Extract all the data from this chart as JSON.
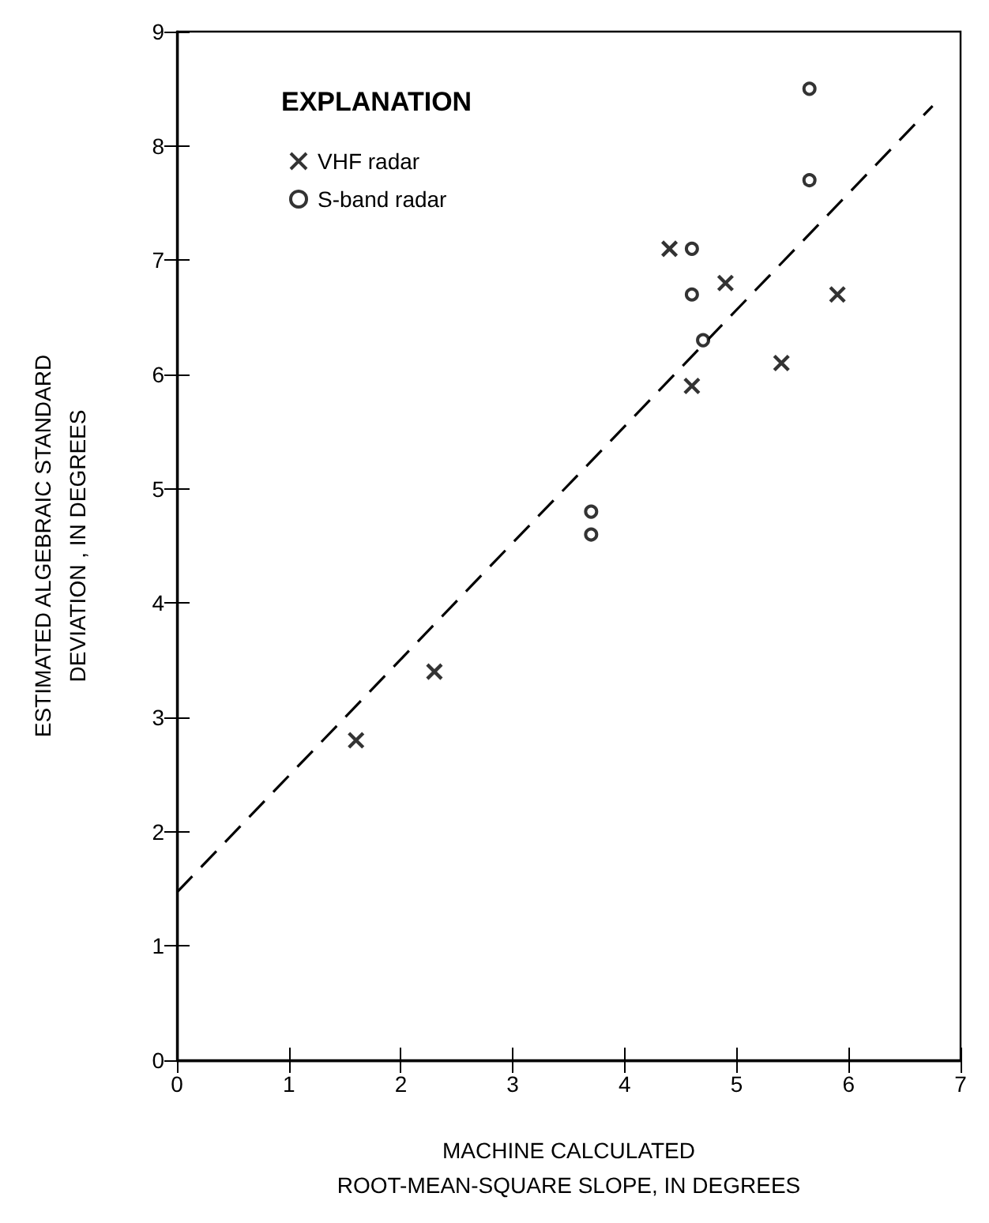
{
  "chart_data": {
    "type": "scatter",
    "xlabel": "MACHINE CALCULATED\nROOT-MEAN-SQUARE SLOPE, IN DEGREES",
    "ylabel": "ESTIMATED ALGEBRAIC STANDARD\nDEVIATION , IN DEGREES",
    "legend_title": "EXPLANATION",
    "legend": "top left",
    "grid": false,
    "xlim": [
      0,
      7
    ],
    "xticks": [
      0,
      1,
      2,
      3,
      4,
      5,
      6,
      7
    ],
    "ylim": [
      0,
      9
    ],
    "yticks": [
      0,
      1,
      2,
      3,
      4,
      5,
      6,
      7,
      8,
      9
    ],
    "series": [
      {
        "name": "VHF radar",
        "type": "scatter",
        "marker": "cross",
        "color": "#000000",
        "x": [
          1.6,
          2.3,
          4.4,
          4.6,
          4.9,
          5.4,
          5.9
        ],
        "values": [
          2.8,
          3.4,
          7.1,
          5.9,
          6.8,
          6.1,
          6.7
        ]
      },
      {
        "name": "S-band radar",
        "type": "scatter",
        "marker": "circle",
        "color": "#000000",
        "x": [
          3.7,
          3.7,
          4.6,
          4.6,
          4.7,
          5.65,
          5.65
        ],
        "values": [
          4.8,
          4.6,
          7.1,
          6.7,
          6.3,
          8.5,
          7.7
        ]
      },
      {
        "type": "line",
        "marker": "none",
        "line_style": "dashed",
        "color": "#000000",
        "x": [
          0,
          6.75
        ],
        "values": [
          1.47,
          8.35
        ]
      }
    ]
  }
}
